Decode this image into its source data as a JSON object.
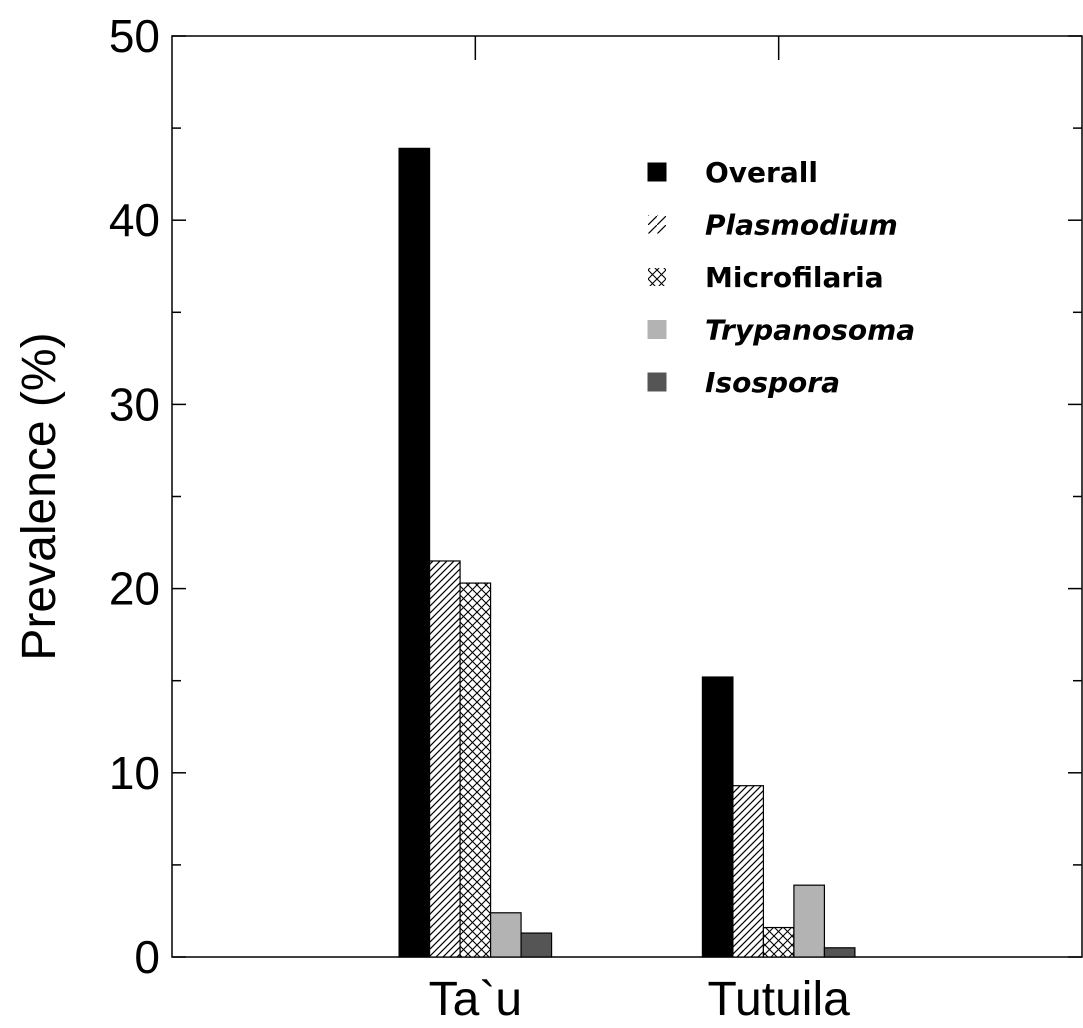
{
  "chart_data": {
    "type": "bar",
    "title": "",
    "xlabel": "",
    "ylabel": "Prevalence (%)",
    "ylim": [
      0,
      50
    ],
    "yticks": [
      0,
      10,
      20,
      30,
      40,
      50
    ],
    "grid": false,
    "legend_position": "top-right",
    "categories": [
      "Ta`u",
      "Tutuila"
    ],
    "series": [
      {
        "name": "Overall",
        "italic": false,
        "pattern": "solid-black",
        "color": "#000000",
        "values": [
          43.9,
          15.2
        ]
      },
      {
        "name": "Plasmodium",
        "italic": true,
        "pattern": "diagonal-hatch",
        "color": "#000000",
        "values": [
          21.5,
          9.3
        ]
      },
      {
        "name": "Microfilaria",
        "italic": false,
        "pattern": "cross-hatch",
        "color": "#000000",
        "values": [
          20.3,
          1.6
        ]
      },
      {
        "name": "Trypanosoma",
        "italic": true,
        "pattern": "solid-lightgray",
        "color": "#b3b3b3",
        "values": [
          2.4,
          3.9
        ]
      },
      {
        "name": "Isospora",
        "italic": true,
        "pattern": "solid-darkgray",
        "color": "#555555",
        "values": [
          1.3,
          0.5
        ]
      }
    ]
  }
}
